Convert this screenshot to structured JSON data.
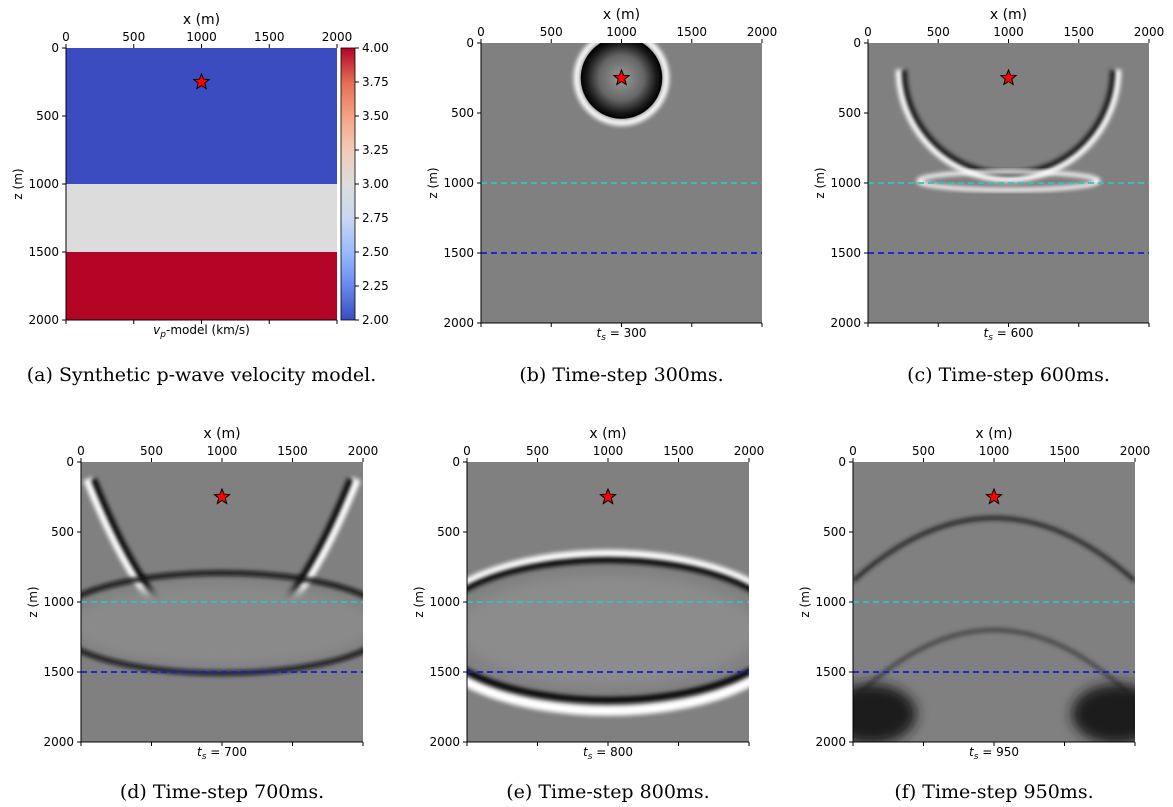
{
  "chart_data": [
    {
      "id": "a",
      "type": "heatmap",
      "caption": "(a) Synthetic p-wave velocity model.",
      "xlabel": "x (m)",
      "ylabel": "z (m)",
      "bottom_label": "v_p-model (km/s)",
      "bottom_label_parts": {
        "base": "v",
        "sub": "p",
        "rest": "-model (km/s)"
      },
      "xlim": [
        0,
        2000
      ],
      "ylim": [
        2000,
        0
      ],
      "x_ticks": [
        "0",
        "500",
        "1000",
        "1500",
        "2000"
      ],
      "y_ticks": [
        "0",
        "500",
        "1000",
        "1500",
        "2000"
      ],
      "layers": [
        {
          "z_top": 0,
          "z_bottom": 1000,
          "velocity": 2.0,
          "color": "#3b4cc0"
        },
        {
          "z_top": 1000,
          "z_bottom": 1500,
          "velocity": 3.0,
          "color": "#dddcdc"
        },
        {
          "z_top": 1500,
          "z_bottom": 2000,
          "velocity": 4.0,
          "color": "#b40426"
        }
      ],
      "colorbar": {
        "min": 2.0,
        "max": 4.0,
        "ticks": [
          "2.00",
          "2.25",
          "2.50",
          "2.75",
          "3.00",
          "3.25",
          "3.50",
          "3.75",
          "4.00"
        ],
        "colors": [
          "#3b4cc0",
          "#6788ee",
          "#9abbff",
          "#c9d7f0",
          "#dddcdc",
          "#f2cbb7",
          "#f6a283",
          "#e36c55",
          "#b40426"
        ]
      },
      "source": {
        "x": 1000,
        "z": 250,
        "color": "#ff0000"
      }
    },
    {
      "id": "b",
      "type": "heatmap",
      "caption": "(b) Time-step 300ms.",
      "xlabel": "x (m)",
      "ylabel": "z (m)",
      "time_label": {
        "base": "t",
        "sub": "s",
        "rest": " = 300"
      },
      "time_ms": 300,
      "source": {
        "x": 1000,
        "z": 250,
        "color": "#ff0000"
      },
      "interfaces": [
        {
          "z": 1000,
          "color": "#2ec4c4"
        },
        {
          "z": 1500,
          "color": "#1a1adb"
        }
      ]
    },
    {
      "id": "c",
      "type": "heatmap",
      "caption": "(c) Time-step 600ms.",
      "xlabel": "x (m)",
      "ylabel": "z (m)",
      "time_label": {
        "base": "t",
        "sub": "s",
        "rest": " = 600"
      },
      "time_ms": 600,
      "source": {
        "x": 1000,
        "z": 250,
        "color": "#ff0000"
      },
      "interfaces": [
        {
          "z": 1000,
          "color": "#2ec4c4"
        },
        {
          "z": 1500,
          "color": "#1a1adb"
        }
      ]
    },
    {
      "id": "d",
      "type": "heatmap",
      "caption": "(d) Time-step 700ms.",
      "xlabel": "x (m)",
      "ylabel": "z (m)",
      "time_label": {
        "base": "t",
        "sub": "s",
        "rest": " = 700"
      },
      "time_ms": 700,
      "source": {
        "x": 1000,
        "z": 250,
        "color": "#ff0000"
      },
      "interfaces": [
        {
          "z": 1000,
          "color": "#2ec4c4"
        },
        {
          "z": 1500,
          "color": "#1a1adb"
        }
      ]
    },
    {
      "id": "e",
      "type": "heatmap",
      "caption": "(e) Time-step 800ms.",
      "xlabel": "x (m)",
      "ylabel": "z (m)",
      "time_label": {
        "base": "t",
        "sub": "s",
        "rest": " = 800"
      },
      "time_ms": 800,
      "source": {
        "x": 1000,
        "z": 250,
        "color": "#ff0000"
      },
      "interfaces": [
        {
          "z": 1000,
          "color": "#2ec4c4"
        },
        {
          "z": 1500,
          "color": "#1a1adb"
        }
      ]
    },
    {
      "id": "f",
      "type": "heatmap",
      "caption": "(f) Time-step 950ms.",
      "xlabel": "x (m)",
      "ylabel": "z (m)",
      "time_label": {
        "base": "t",
        "sub": "s",
        "rest": " = 950"
      },
      "time_ms": 950,
      "source": {
        "x": 1000,
        "z": 250,
        "color": "#ff0000"
      },
      "interfaces": [
        {
          "z": 1000,
          "color": "#2ec4c4"
        },
        {
          "z": 1500,
          "color": "#1a1adb"
        }
      ]
    }
  ]
}
